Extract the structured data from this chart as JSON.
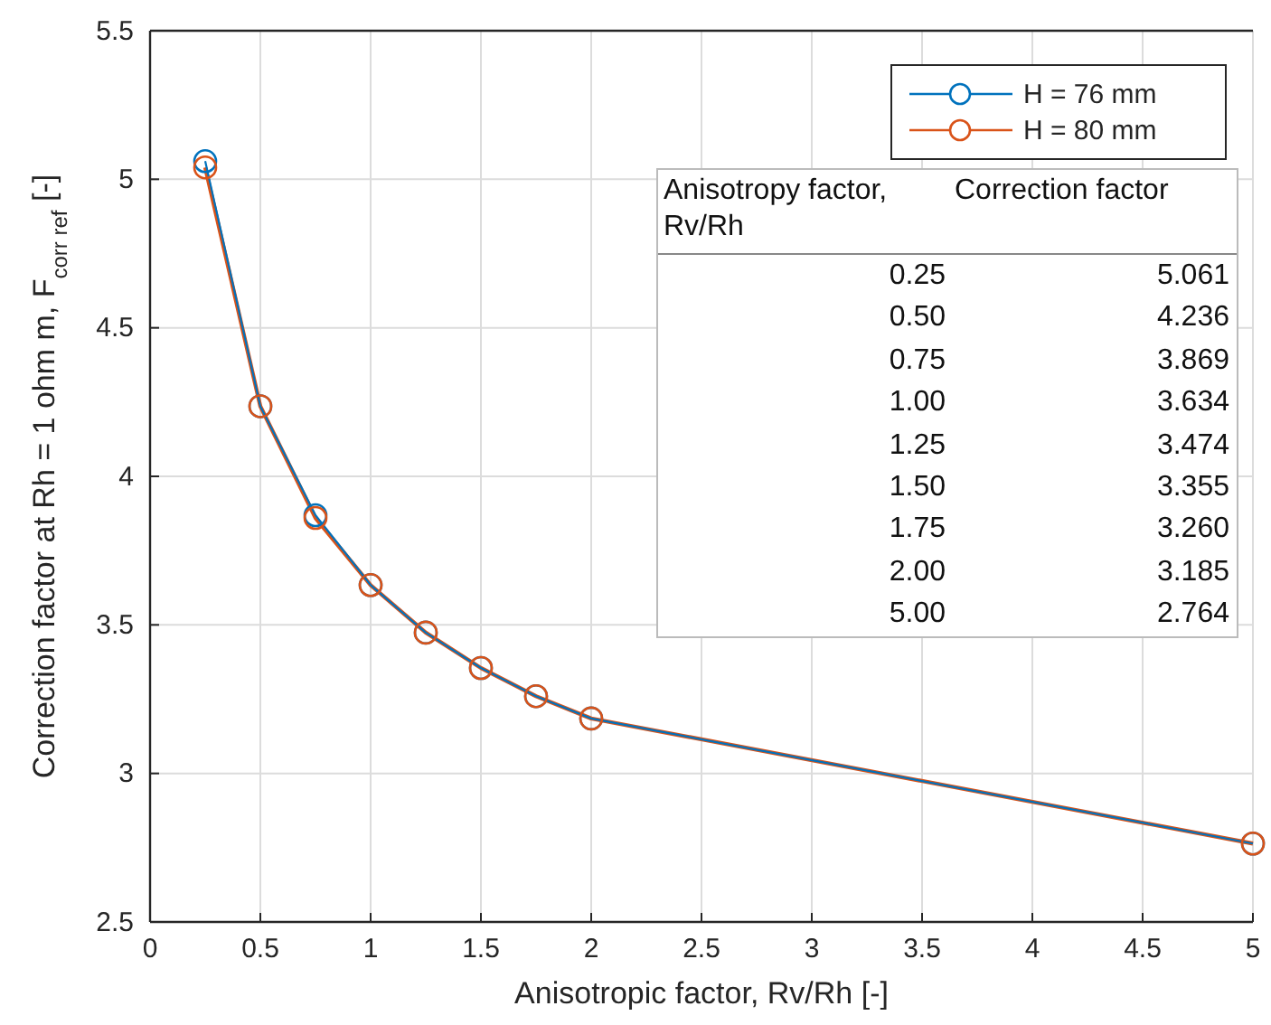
{
  "chart_data": {
    "type": "line",
    "xlabel": "Anisotropic factor, Rv/Rh [-]",
    "ylabel": "Correction factor at Rh = 1 ohm m, F$_{corr ref}$ [-]",
    "x": [
      0.25,
      0.5,
      0.75,
      1,
      1.25,
      1.5,
      1.75,
      2,
      5
    ],
    "series": [
      {
        "name": "H = 76 mm",
        "color": "#0072bd",
        "values": [
          5.061,
          4.236,
          3.869,
          3.634,
          3.474,
          3.355,
          3.26,
          3.185,
          2.764
        ]
      },
      {
        "name": "H = 80 mm",
        "color": "#d95319",
        "values": [
          5.04,
          4.236,
          3.86,
          3.634,
          3.474,
          3.355,
          3.26,
          3.185,
          2.764
        ]
      }
    ],
    "xlim": [
      0,
      5
    ],
    "xticks": [
      0,
      0.5,
      1,
      1.5,
      2,
      2.5,
      3,
      3.5,
      4,
      4.5,
      5
    ],
    "ylim": [
      2.5,
      5.5
    ],
    "yticks": [
      2.5,
      3,
      3.5,
      4,
      4.5,
      5,
      5.5
    ],
    "grid": true,
    "legend": "top right",
    "marker": "circle",
    "line_style": "solid",
    "annotations": [
      "Anisotropy factor, Rv/Rh",
      "Correction factor",
      "0.25",
      "5.061",
      "0.50",
      "4.236",
      "0.75",
      "3.869",
      "1.00",
      "3.634",
      "1.25",
      "3.474",
      "1.50",
      "3.355",
      "1.75",
      "3.260",
      "2.00",
      "3.185",
      "5.00",
      "2.764"
    ]
  }
}
